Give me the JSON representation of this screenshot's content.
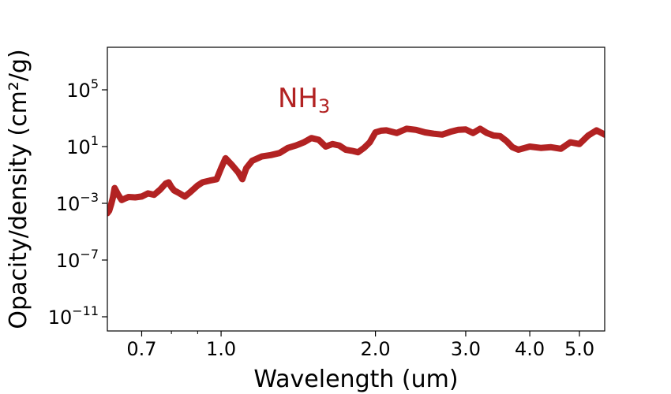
{
  "chart_data": {
    "type": "line",
    "xlabel": "Wavelength  (um)",
    "ylabel": "Opacity/density  (cm²/g)",
    "x_scale": "log",
    "y_scale": "log",
    "xlim": [
      0.6,
      5.6
    ],
    "ylim": [
      1e-12,
      100000000.0
    ],
    "x_ticks": [
      {
        "value": 0.7,
        "label": "0.7"
      },
      {
        "value": 1.0,
        "label": "1.0"
      },
      {
        "value": 2.0,
        "label": "2.0"
      },
      {
        "value": 3.0,
        "label": "3.0"
      },
      {
        "value": 4.0,
        "label": "4.0"
      },
      {
        "value": 5.0,
        "label": "5.0"
      }
    ],
    "x_minor_ticks": [
      0.8,
      0.9
    ],
    "y_ticks": [
      {
        "value": 100000.0,
        "base": "10",
        "exp": "5"
      },
      {
        "value": 10,
        "base": "10",
        "exp": "1"
      },
      {
        "value": 0.001,
        "base": "10",
        "exp": "−3"
      },
      {
        "value": 1e-07,
        "base": "10",
        "exp": "−7"
      },
      {
        "value": 1e-11,
        "base": "10",
        "exp": "−11"
      }
    ],
    "grid": false,
    "annotation": {
      "base": "NH",
      "sub": "3",
      "color": "#b22222"
    },
    "series": [
      {
        "color": "#b22222",
        "x": [
          0.6,
          0.605,
          0.61,
          0.615,
          0.62,
          0.63,
          0.64,
          0.65,
          0.66,
          0.68,
          0.7,
          0.72,
          0.74,
          0.76,
          0.78,
          0.79,
          0.8,
          0.81,
          0.83,
          0.85,
          0.87,
          0.9,
          0.92,
          0.95,
          0.98,
          1.0,
          1.02,
          1.05,
          1.08,
          1.1,
          1.12,
          1.15,
          1.2,
          1.25,
          1.3,
          1.35,
          1.4,
          1.45,
          1.5,
          1.55,
          1.6,
          1.65,
          1.7,
          1.75,
          1.8,
          1.85,
          1.9,
          1.95,
          2.0,
          2.05,
          2.1,
          2.2,
          2.3,
          2.4,
          2.5,
          2.6,
          2.7,
          2.8,
          2.9,
          3.0,
          3.1,
          3.2,
          3.3,
          3.4,
          3.5,
          3.6,
          3.7,
          3.8,
          4.0,
          4.2,
          4.4,
          4.6,
          4.8,
          5.0,
          5.2,
          5.4,
          5.6
        ],
        "y": [
          0.0002,
          0.0003,
          0.0008,
          0.0025,
          0.012,
          0.004,
          0.0017,
          0.0022,
          0.0028,
          0.0026,
          0.003,
          0.005,
          0.004,
          0.009,
          0.025,
          0.03,
          0.014,
          0.008,
          0.005,
          0.003,
          0.006,
          0.018,
          0.03,
          0.04,
          0.05,
          0.3,
          1.5,
          0.5,
          0.15,
          0.05,
          0.3,
          1.0,
          2.0,
          2.5,
          3.5,
          8.0,
          12.0,
          20.0,
          40.0,
          30.0,
          10.0,
          15.0,
          12.0,
          6.0,
          5.0,
          4.0,
          8.0,
          20.0,
          100.0,
          130.0,
          140.0,
          90.0,
          180.0,
          150.0,
          100.0,
          80.0,
          70.0,
          110.0,
          150.0,
          160.0,
          90.0,
          180.0,
          90.0,
          60.0,
          55.0,
          25.0,
          9.0,
          6.0,
          10.0,
          8.0,
          9.0,
          7.0,
          20.0,
          15.0,
          60.0,
          140.0,
          70.0
        ]
      }
    ]
  }
}
